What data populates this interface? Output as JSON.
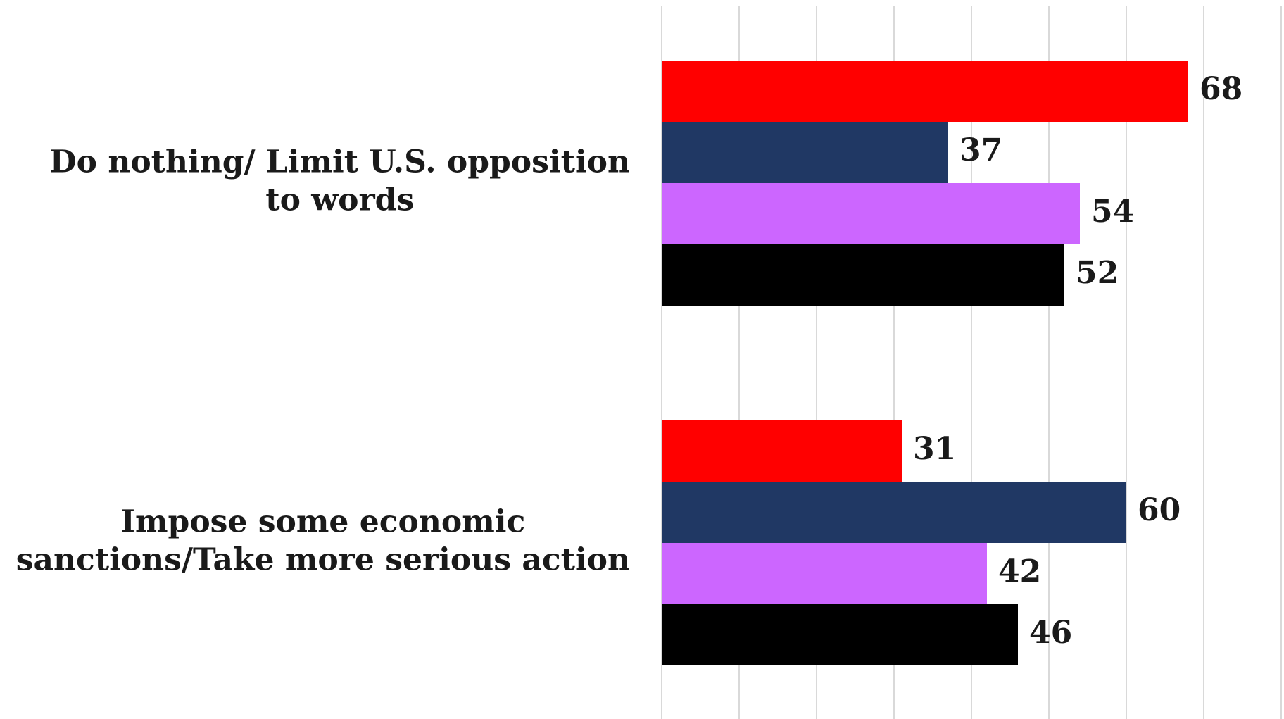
{
  "chart_data": {
    "type": "bar",
    "orientation": "horizontal",
    "categories": [
      "Do nothing/ Limit U.S. opposition to words",
      "Impose some economic sanctions/Take more serious action"
    ],
    "category_lines": [
      [
        "Do nothing/ Limit U.S. opposition",
        "to words"
      ],
      [
        "Impose some economic",
        "sanctions/Take more serious action"
      ]
    ],
    "series": [
      {
        "values": [
          68,
          31
        ],
        "color": "#ff0000"
      },
      {
        "values": [
          37,
          60
        ],
        "color": "#203864"
      },
      {
        "values": [
          54,
          42
        ],
        "color": "#cc66ff"
      },
      {
        "values": [
          52,
          46
        ],
        "color": "#000000"
      }
    ],
    "title": "",
    "xlabel": "",
    "ylabel": "",
    "xlim": [
      0,
      80
    ],
    "grid": true,
    "legend": "none",
    "data_labels": true
  }
}
